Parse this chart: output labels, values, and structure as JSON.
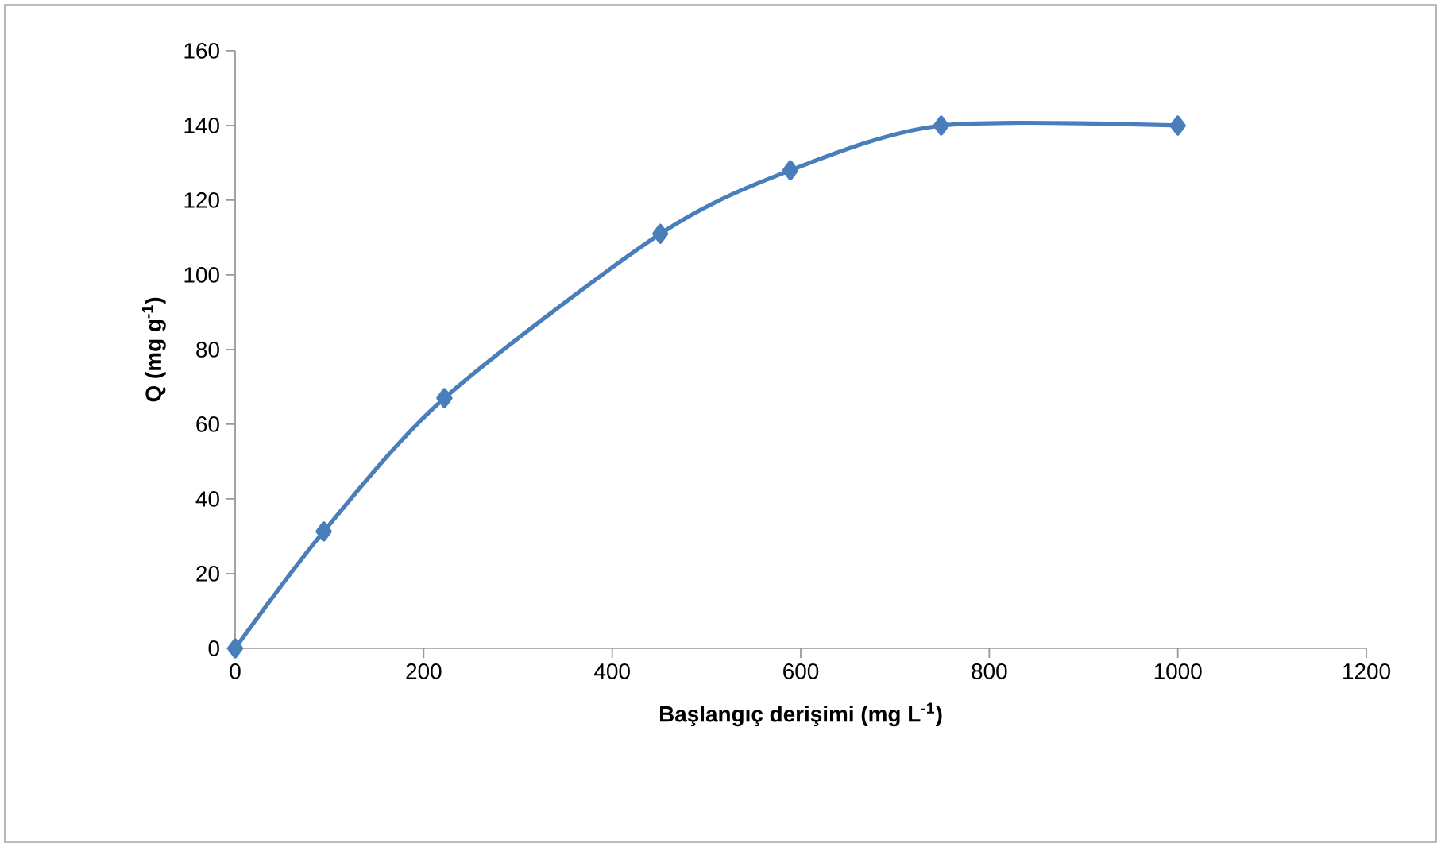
{
  "chart_data": {
    "type": "line",
    "xlabel": "Başlangıç derişimi (mg L$^{-1}$)",
    "ylabel": "Q (mg g$^{-1}$)",
    "x": [
      0,
      94,
      222,
      451,
      589,
      749,
      1000
    ],
    "series": [
      {
        "color": "#4a7ebb",
        "values": [
          0,
          31.3,
          67,
          111,
          128,
          140,
          140
        ]
      }
    ],
    "xlim": [
      0,
      1200
    ],
    "ylim": [
      0,
      160
    ],
    "xticks": [
      0,
      200,
      400,
      600,
      800,
      1000,
      1200
    ],
    "yticks": [
      0,
      20,
      40,
      60,
      80,
      100,
      120,
      140,
      160
    ],
    "grid": false,
    "marker": "diamond",
    "line_style": "solid"
  }
}
